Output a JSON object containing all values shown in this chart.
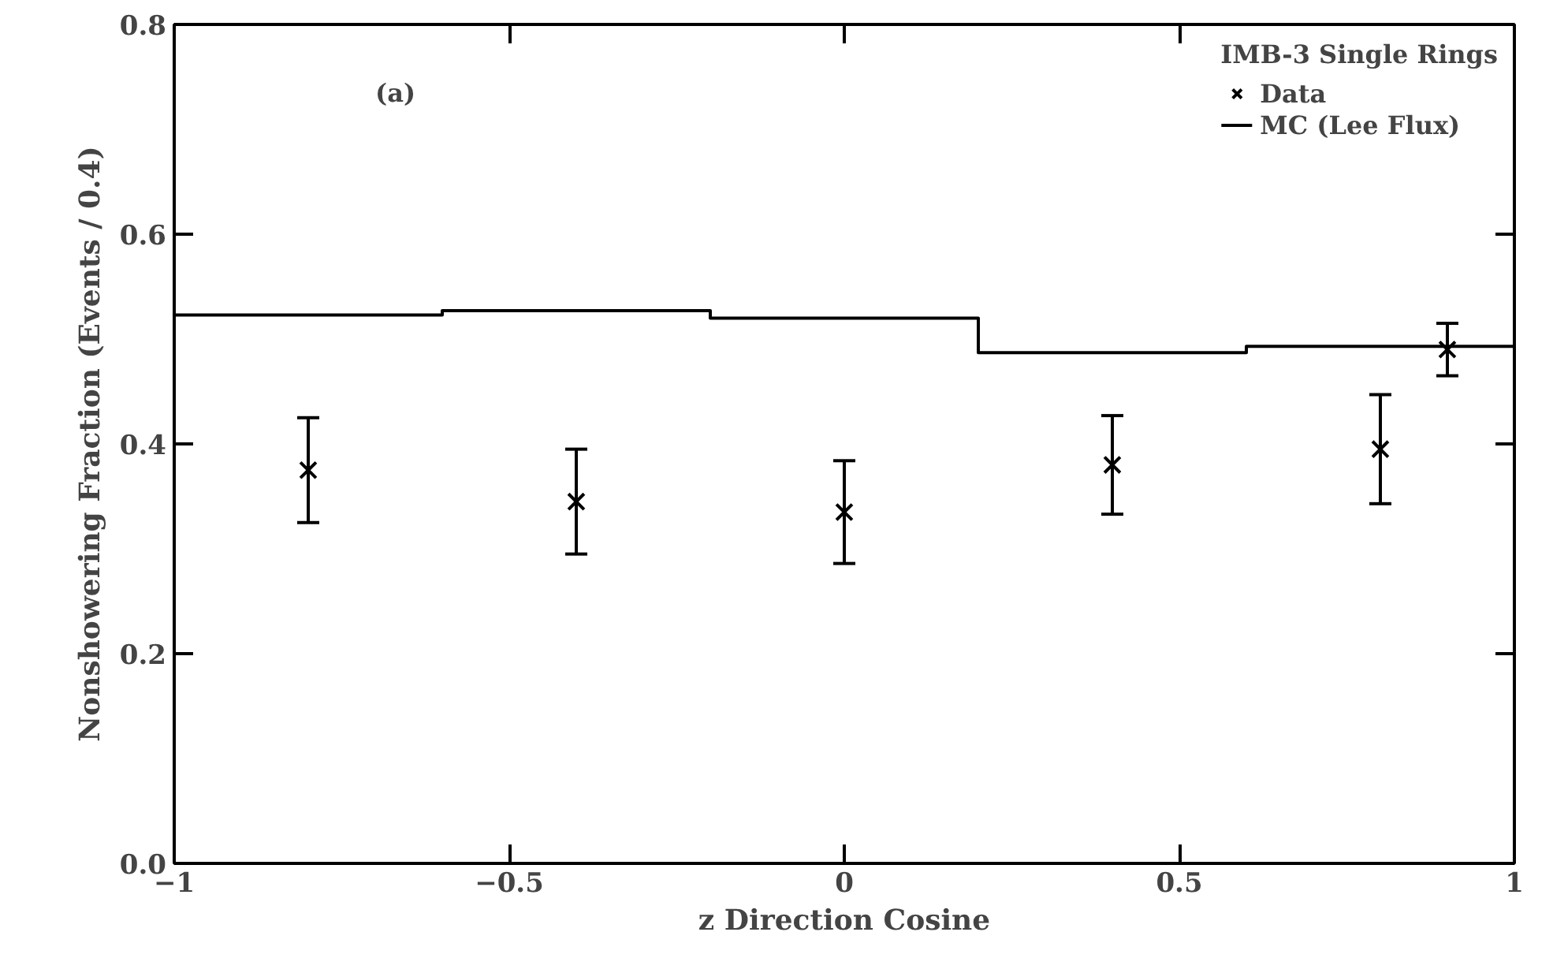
{
  "chart_data": {
    "type": "scatter",
    "xlabel": "z Direction Cosine",
    "ylabel": "Nonshowering Fraction (Events / 0.4)",
    "legend_title": "IMB-3 Single Rings",
    "legend": "top right",
    "grid": false,
    "x": [
      -0.8,
      -0.4,
      0,
      0.4,
      0.8,
      0.9
    ],
    "series": [
      {
        "name": "Data",
        "color": "#000000",
        "marker": "cross",
        "values": [
          0.375,
          0.345,
          0.335,
          0.38,
          0.395,
          0.49
        ],
        "errors": [
          0.05,
          0.05,
          0.049,
          0.047,
          0.052,
          0.025
        ]
      },
      {
        "name": "MC (Lee Flux)",
        "type": "step",
        "color": "#000000",
        "x": [
          -1,
          -0.6,
          -0.2,
          0.2,
          0.6,
          1
        ],
        "values": [
          0.523,
          0.527,
          0.52,
          0.487,
          0.493,
          0.493
        ]
      }
    ],
    "xlim": [
      -1,
      1
    ],
    "ylim": [
      0,
      0.8
    ],
    "xticks": [
      {
        "value": -1,
        "label": "−1"
      },
      {
        "value": -0.5,
        "label": "−0.5"
      },
      0,
      0.5,
      1
    ],
    "yticks": [
      {
        "value": 0,
        "label": "0.0"
      },
      0.2,
      0.4,
      0.6,
      0.8
    ],
    "annotations": [
      "(a)"
    ]
  }
}
